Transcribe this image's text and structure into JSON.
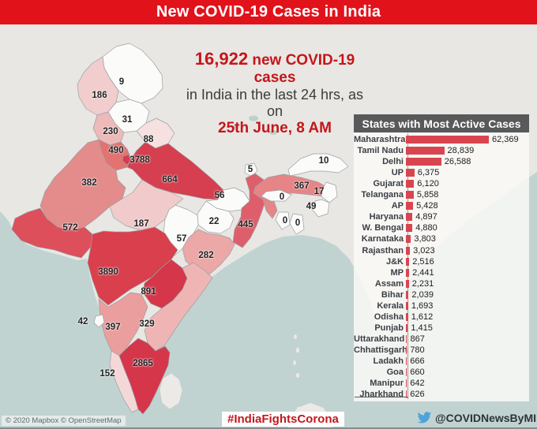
{
  "colors": {
    "banner_bg": "#e2121b",
    "accent_red": "#c4161c",
    "bar_color": "#d9454f",
    "panel_header_bg": "#58595b",
    "sea": "#c1d3d0",
    "land": "#e9e7e3",
    "state_border": "#9aa0a3",
    "twitter_blue": "#4da3dc"
  },
  "header": {
    "title": "New COVID-19 Cases in India"
  },
  "headline": {
    "count": "16,922",
    "line1_rest": " new COVID-19 cases",
    "line2": "in India in the last 24 hrs, as on",
    "line3": "25th June, 8 AM"
  },
  "panel": {
    "title": "States with Most Active Cases"
  },
  "footer": {
    "attribution": "© 2020 Mapbox © OpenStreetMap",
    "hashtag": "#IndiaFightsCorona",
    "handle": "@COVIDNewsByMIB"
  },
  "map": {
    "states": [
      {
        "id": "ladakh",
        "name": "Ladakh",
        "cases_label": "9",
        "fill": "#fbfbfa"
      },
      {
        "id": "jk",
        "name": "Jammu & Kashmir",
        "cases_label": "186",
        "fill": "#f1cdcd"
      },
      {
        "id": "himachal",
        "name": "Himachal Pradesh",
        "cases_label": "31",
        "fill": "#fbfbfa"
      },
      {
        "id": "punjab",
        "name": "Punjab",
        "cases_label": "230",
        "fill": "#edb9b9"
      },
      {
        "id": "uttarakhand",
        "name": "Uttarakhand",
        "cases_label": "88",
        "fill": "#f6e0e0"
      },
      {
        "id": "haryana",
        "name": "Haryana",
        "cases_label": "490",
        "fill": "#e37270"
      },
      {
        "id": "delhi",
        "name": "Delhi",
        "cases_label": "3788",
        "fill": "#d63c4c"
      },
      {
        "id": "rajasthan",
        "name": "Rajasthan",
        "cases_label": "382",
        "fill": "#e48b8b"
      },
      {
        "id": "up",
        "name": "Uttar Pradesh",
        "cases_label": "664",
        "fill": "#d63f4f"
      },
      {
        "id": "bihar",
        "name": "Bihar",
        "cases_label": "56",
        "fill": "#fbfbfa"
      },
      {
        "id": "sikkim",
        "name": "Sikkim",
        "cases_label": "5",
        "fill": "#fbfbfa"
      },
      {
        "id": "wbengal",
        "name": "West Bengal",
        "cases_label": "445",
        "fill": "#de5f6b"
      },
      {
        "id": "jharkhand",
        "name": "Jharkhand",
        "cases_label": "22",
        "fill": "#fbfbfa"
      },
      {
        "id": "odisha",
        "name": "Odisha",
        "cases_label": "282",
        "fill": "#eca7a7"
      },
      {
        "id": "chhattisgarh",
        "name": "Chhattisgarh",
        "cases_label": "57",
        "fill": "#fbfbfa"
      },
      {
        "id": "mp",
        "name": "Madhya Pradesh",
        "cases_label": "187",
        "fill": "#f1cbcb"
      },
      {
        "id": "gujarat",
        "name": "Gujarat",
        "cases_label": "572",
        "fill": "#dc4f5b"
      },
      {
        "id": "maharashtra",
        "name": "Maharashtra",
        "cases_label": "3890",
        "fill": "#d93f4c"
      },
      {
        "id": "telangana",
        "name": "Telangana",
        "cases_label": "891",
        "fill": "#d5364a"
      },
      {
        "id": "ap",
        "name": "Andhra Pradesh",
        "cases_label": "329",
        "fill": "#efb5b5"
      },
      {
        "id": "karnataka",
        "name": "Karnataka",
        "cases_label": "397",
        "fill": "#ea9e9e"
      },
      {
        "id": "goa",
        "name": "Goa",
        "cases_label": "42",
        "fill": "#fbfbfa"
      },
      {
        "id": "kerala",
        "name": "Kerala",
        "cases_label": "152",
        "fill": "#f4d8d8"
      },
      {
        "id": "tamilnadu",
        "name": "Tamil Nadu",
        "cases_label": "2865",
        "fill": "#d5364a"
      },
      {
        "id": "assam",
        "name": "Assam",
        "cases_label": "367",
        "fill": "#e68587"
      },
      {
        "id": "arunachal",
        "name": "Arunachal Pradesh",
        "cases_label": "10",
        "fill": "#fbfbfa"
      },
      {
        "id": "nagaland",
        "name": "Nagaland",
        "cases_label": "17",
        "fill": "#fbfbfa"
      },
      {
        "id": "manipur",
        "name": "Manipur",
        "cases_label": "49",
        "fill": "#fbfbfa"
      },
      {
        "id": "meghalaya",
        "name": "Meghalaya",
        "cases_label": "0",
        "fill": "#fbfbfa"
      },
      {
        "id": "tripura",
        "name": "Tripura",
        "cases_label": "0",
        "fill": "#fbfbfa"
      },
      {
        "id": "mizoram",
        "name": "Mizoram",
        "cases_label": "0",
        "fill": "#fbfbfa"
      }
    ]
  },
  "chart_data": [
    {
      "type": "bar",
      "orientation": "horizontal",
      "title": "States with Most Active Cases",
      "categories": [
        "Maharashtra",
        "Tamil Nadu",
        "Delhi",
        "UP",
        "Gujarat",
        "Telangana",
        "AP",
        "Haryana",
        "W. Bengal",
        "Karnataka",
        "Rajasthan",
        "J&K",
        "MP",
        "Assam",
        "Bihar",
        "Kerala",
        "Odisha",
        "Punjab",
        "Uttarakhand",
        "Chhattisgarh",
        "Ladakh",
        "Goa",
        "Manipur",
        "Jharkhand"
      ],
      "values": [
        62369,
        28839,
        26588,
        6375,
        6120,
        5858,
        5428,
        4897,
        4880,
        3803,
        3023,
        2516,
        2441,
        2231,
        2039,
        1693,
        1612,
        1415,
        867,
        780,
        666,
        660,
        642,
        626
      ],
      "value_labels": [
        "62,369",
        "28,839",
        "26,588",
        "6,375",
        "6,120",
        "5,858",
        "5,428",
        "4,897",
        "4,880",
        "3,803",
        "3,023",
        "2,516",
        "2,441",
        "2,231",
        "2,039",
        "1,693",
        "1,612",
        "1,415",
        "867",
        "780",
        "666",
        "660",
        "642",
        "626"
      ],
      "xlim": [
        0,
        62369
      ],
      "legend": "none",
      "grid": "off"
    },
    {
      "type": "heatmap",
      "subtype": "choropleth-map",
      "title": "New COVID-19 cases in the last 24 hrs by state (map labels)",
      "categories": [
        "Ladakh",
        "Jammu & Kashmir",
        "Himachal Pradesh",
        "Punjab",
        "Uttarakhand",
        "Haryana",
        "Delhi",
        "Rajasthan",
        "Uttar Pradesh",
        "Bihar",
        "Sikkim",
        "West Bengal",
        "Jharkhand",
        "Odisha",
        "Chhattisgarh",
        "Madhya Pradesh",
        "Gujarat",
        "Maharashtra",
        "Telangana",
        "Andhra Pradesh",
        "Karnataka",
        "Goa",
        "Kerala",
        "Tamil Nadu",
        "Assam",
        "Arunachal Pradesh",
        "Nagaland",
        "Manipur",
        "Meghalaya",
        "Tripura",
        "Mizoram"
      ],
      "values": [
        9,
        186,
        31,
        230,
        88,
        490,
        3788,
        382,
        664,
        56,
        5,
        445,
        22,
        282,
        57,
        187,
        572,
        3890,
        891,
        329,
        397,
        42,
        152,
        2865,
        367,
        10,
        17,
        49,
        0,
        0,
        0
      ]
    }
  ]
}
